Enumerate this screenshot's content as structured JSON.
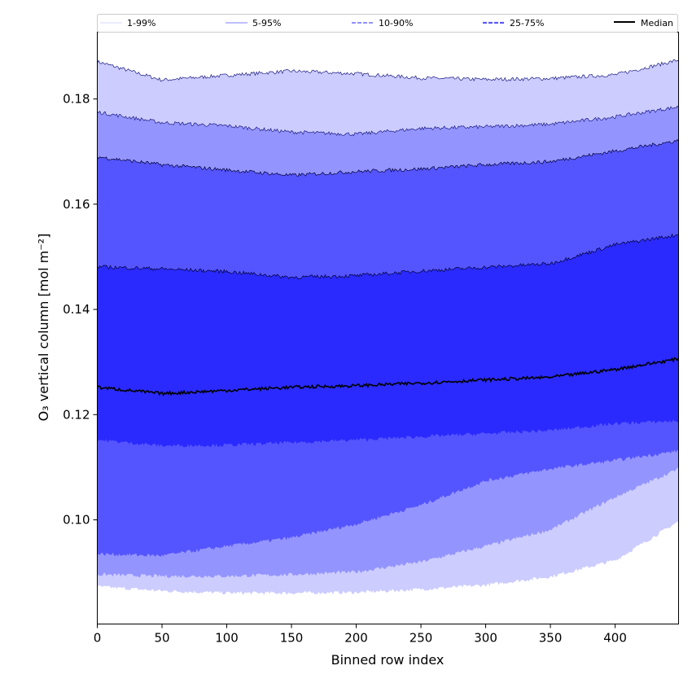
{
  "chart_data": {
    "type": "area",
    "title": "",
    "xlabel": "Binned row index",
    "ylabel": "O₃ vertical column [mol m⁻²]",
    "xlim": [
      0,
      449
    ],
    "ylim": [
      0.0802,
      0.1927
    ],
    "xticks": [
      0,
      50,
      100,
      150,
      200,
      250,
      300,
      350,
      400
    ],
    "xtick_labels": [
      "0",
      "50",
      "100",
      "150",
      "200",
      "250",
      "300",
      "350",
      "400"
    ],
    "yticks": [
      0.1,
      0.12,
      0.14,
      0.16,
      0.18
    ],
    "ytick_labels": [
      "0.10",
      "0.12",
      "0.14",
      "0.16",
      "0.18"
    ],
    "grid": false,
    "legend_placement": "top",
    "x": [
      0,
      50,
      100,
      150,
      200,
      250,
      300,
      350,
      400,
      449
    ],
    "bands": [
      {
        "name": "1-99%",
        "color": "#ccccff",
        "legend_color": "#d8d8ff",
        "lower": [
          0.0873,
          0.0865,
          0.0861,
          0.0861,
          0.0862,
          0.0868,
          0.0876,
          0.0892,
          0.0923,
          0.0997
        ],
        "upper": [
          0.1871,
          0.1836,
          0.1845,
          0.1853,
          0.1848,
          0.184,
          0.1837,
          0.1839,
          0.1846,
          0.1874
        ]
      },
      {
        "name": "5-95%",
        "color": "#9494ff",
        "legend_color": "#a8a8ff",
        "lower": [
          0.0896,
          0.0893,
          0.0893,
          0.0896,
          0.0901,
          0.092,
          0.095,
          0.0981,
          0.1043,
          0.1097
        ],
        "upper": [
          0.1775,
          0.1755,
          0.1749,
          0.1737,
          0.1733,
          0.1744,
          0.1747,
          0.1752,
          0.1766,
          0.1785
        ]
      },
      {
        "name": "10-90%",
        "color": "#5555ff",
        "legend_color": "#8080ff",
        "lower": [
          0.0935,
          0.0932,
          0.095,
          0.0966,
          0.0992,
          0.1028,
          0.1074,
          0.1097,
          0.1113,
          0.1131
        ],
        "upper": [
          0.169,
          0.1675,
          0.1665,
          0.1655,
          0.1662,
          0.1667,
          0.1675,
          0.1681,
          0.1701,
          0.1721
        ]
      },
      {
        "name": "25-75%",
        "color": "#2a2aff",
        "legend_color": "#5a5aff",
        "lower": [
          0.1152,
          0.1141,
          0.1142,
          0.1147,
          0.1152,
          0.1158,
          0.1164,
          0.117,
          0.1183,
          0.1188
        ],
        "upper": [
          0.1481,
          0.1477,
          0.1472,
          0.1461,
          0.1464,
          0.1473,
          0.148,
          0.1487,
          0.1523,
          0.1542
        ]
      }
    ],
    "series": [
      {
        "name": "Median",
        "color": "#000000",
        "values": [
          0.1252,
          0.124,
          0.1246,
          0.1252,
          0.1255,
          0.126,
          0.1266,
          0.1271,
          0.1286,
          0.1306
        ]
      }
    ]
  }
}
